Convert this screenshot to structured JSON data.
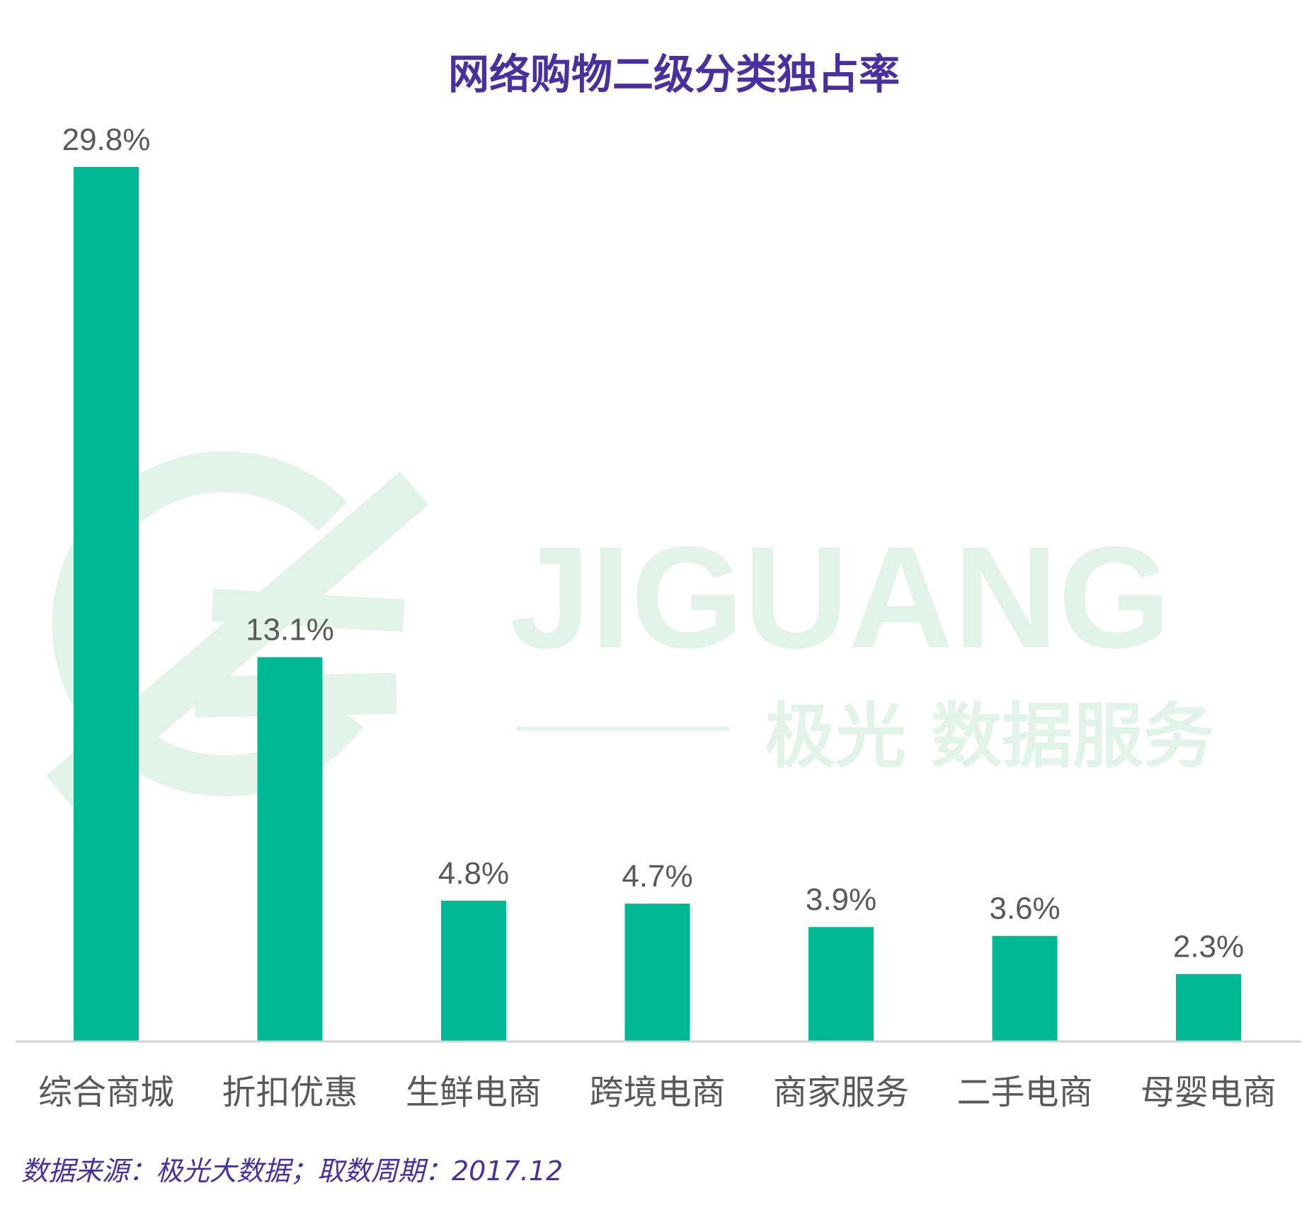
{
  "chart_data": {
    "type": "bar",
    "title": "网络购物二级分类独占率",
    "categories": [
      "综合商城",
      "折扣优惠",
      "生鲜电商",
      "跨境电商",
      "商家服务",
      "二手电商",
      "母婴电商"
    ],
    "values": [
      29.8,
      13.1,
      4.8,
      4.7,
      3.9,
      3.6,
      2.3
    ],
    "value_labels": [
      "29.8%",
      "13.1%",
      "4.8%",
      "4.7%",
      "3.9%",
      "3.6%",
      "2.3%"
    ],
    "xlabel": "",
    "ylabel": "",
    "grid": false,
    "legend": "none"
  },
  "source_note": "数据来源：极光大数据；取数周期：2017.12",
  "watermark": {
    "brand": "JIGUANG",
    "tagline": "极光 数据服务"
  },
  "colors": {
    "bar": "#00b894",
    "title": "#4a2fa0",
    "value_label": "#595959",
    "category_label": "#595959",
    "source": "#4a2fa0",
    "axis": "#d0d0d0",
    "watermark": "#e2f4ea"
  }
}
